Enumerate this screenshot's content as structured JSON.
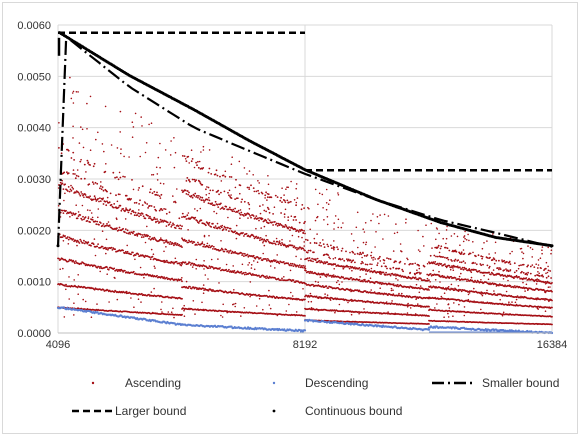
{
  "chart_data": {
    "type": "scatter",
    "x_axis": {
      "scale": "log2",
      "range": [
        4096,
        16384
      ],
      "ticks": [
        "4096",
        "8192",
        "16384"
      ]
    },
    "y_axis": {
      "range": [
        0,
        0.006
      ],
      "ticks": [
        "0.0000",
        "0.0010",
        "0.0020",
        "0.0030",
        "0.0040",
        "0.0050",
        "0.0060"
      ]
    },
    "grid": "horizontal and vertical gridlines, light gray",
    "legend_position": "bottom",
    "series": [
      {
        "name": "Ascending",
        "style": "dots",
        "color": "#a50f15",
        "description": "dense red point clouds in stepped decreasing bands",
        "band_starts_at_4096": [
          0.0005,
          0.00095,
          0.00145,
          0.0019,
          0.0024,
          0.0029,
          0.0032,
          0.0036
        ],
        "segments": [
          [
            4096,
            5800
          ],
          [
            5800,
            8192
          ],
          [
            8192,
            11600
          ],
          [
            11600,
            16384
          ]
        ]
      },
      {
        "name": "Descending",
        "style": "dots",
        "color": "#5b7fd1",
        "points": [
          [
            4096,
            0.0005
          ],
          [
            5000,
            0.00028
          ],
          [
            5800,
            0.00018
          ],
          [
            8192,
            5e-05
          ],
          [
            8200,
            0.00025
          ],
          [
            10000,
            0.00012
          ],
          [
            16384,
            0.0
          ]
        ]
      },
      {
        "name": "Smaller bound",
        "style": "dash-dot",
        "color": "#000000",
        "points": [
          [
            4096,
            0.0059
          ],
          [
            5000,
            0.0048
          ],
          [
            6000,
            0.004
          ],
          [
            7000,
            0.00355
          ],
          [
            8192,
            0.0031
          ],
          [
            10000,
            0.0026
          ],
          [
            12000,
            0.0022
          ],
          [
            14000,
            0.00195
          ],
          [
            16384,
            0.00168
          ]
        ]
      },
      {
        "name": "Larger bound",
        "style": "dashed",
        "color": "#000000",
        "points": [
          [
            4096,
            0.00585
          ],
          [
            8192,
            0.00585
          ],
          [
            8192,
            0.00317
          ],
          [
            16384,
            0.00317
          ]
        ]
      },
      {
        "name": "Continuous bound",
        "style": "dotted-heavy",
        "color": "#000000",
        "points": [
          [
            4096,
            0.00587
          ],
          [
            5000,
            0.00502
          ],
          [
            6000,
            0.00435
          ],
          [
            7000,
            0.00375
          ],
          [
            8192,
            0.00318
          ],
          [
            10000,
            0.0026
          ],
          [
            12000,
            0.00215
          ],
          [
            14000,
            0.00186
          ],
          [
            16384,
            0.0017
          ]
        ]
      }
    ]
  },
  "legend": {
    "ascending": "Ascending",
    "descending": "Descending",
    "smaller_bound": "Smaller bound",
    "larger_bound": "Larger bound",
    "continuous_bound": "Continuous bound"
  }
}
